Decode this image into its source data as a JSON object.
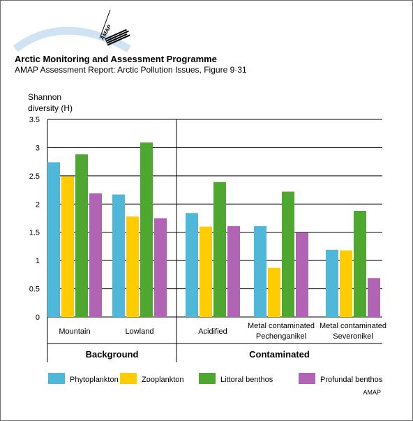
{
  "header": {
    "logo_text": "AMAP",
    "organization": "Arctic Monitoring and Assessment Programme",
    "report": "AMAP Assessment Report: Arctic Pollution Issues, Figure 9·31"
  },
  "credit": "AMAP",
  "colors": {
    "Phytoplankton": "#4fb8d8",
    "Zooplankton": "#ffcc00",
    "Littoral benthos": "#4ea72e",
    "Profundal benthos": "#b264b4"
  },
  "chart_data": {
    "type": "bar",
    "ylabel": [
      "Shannon",
      "diversity (H)"
    ],
    "ylim": [
      0,
      3.5
    ],
    "yticks": [
      "0",
      "0.5",
      "1",
      "1.5",
      "2",
      "2.5",
      "3",
      "3.5"
    ],
    "grid": true,
    "categories": [
      "Mountain",
      "Lowland",
      "Acidified",
      "Metal contaminated Pechenganikel",
      "Metal contaminated Severonikel"
    ],
    "category_lines": [
      [
        "Mountain"
      ],
      [
        "Lowland"
      ],
      [
        "Acidified"
      ],
      [
        "Metal contaminated",
        "Pechenganikel"
      ],
      [
        "Metal contaminated",
        "Severonikel"
      ]
    ],
    "groups": [
      {
        "label": "Background",
        "categories": [
          "Mountain",
          "Lowland"
        ]
      },
      {
        "label": "Contaminated",
        "categories": [
          "Acidified",
          "Metal contaminated Pechenganikel",
          "Metal contaminated Severonikel"
        ]
      }
    ],
    "series": [
      {
        "name": "Phytoplankton",
        "values": [
          2.74,
          2.17,
          1.84,
          1.61,
          1.19
        ]
      },
      {
        "name": "Zooplankton",
        "values": [
          2.49,
          1.78,
          1.6,
          0.87,
          1.18
        ]
      },
      {
        "name": "Littoral benthos",
        "values": [
          2.88,
          3.09,
          2.39,
          2.22,
          1.88
        ]
      },
      {
        "name": "Profundal benthos",
        "values": [
          2.19,
          1.75,
          1.61,
          1.49,
          0.69
        ]
      }
    ],
    "legend_position": "bottom"
  }
}
